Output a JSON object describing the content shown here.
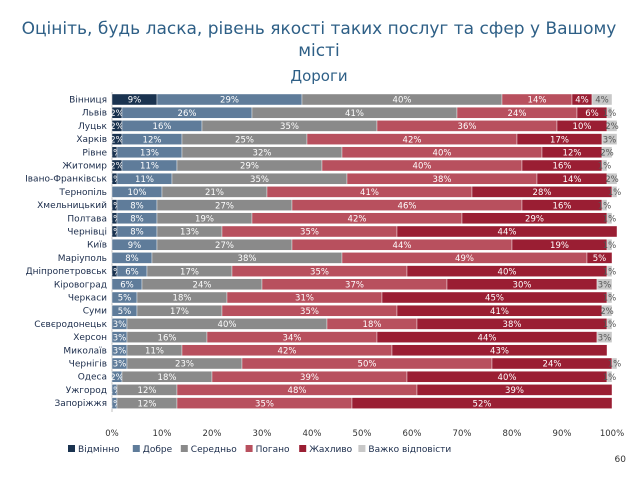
{
  "header": {
    "title": "Оцініть, будь ласка, рівень якості таких послуг та сфер у Вашому місті",
    "page_number": "60"
  },
  "chart_data": {
    "type": "bar",
    "orientation": "horizontal",
    "stacked": true,
    "title": "Дороги",
    "xlim": [
      0,
      100
    ],
    "x_ticks": [
      "0%",
      "10%",
      "20%",
      "30%",
      "40%",
      "50%",
      "60%",
      "70%",
      "80%",
      "90%",
      "100%"
    ],
    "legend_position": "bottom",
    "categories": [
      "Вінниця",
      "Львів",
      "Луцьк",
      "Харків",
      "Рівне",
      "Житомир",
      "Івано-Франківськ",
      "Тернопіль",
      "Хмельницький",
      "Полтава",
      "Чернівці",
      "Київ",
      "Маріуполь",
      "Дніпропетровськ",
      "Кіровоград",
      "Черкаси",
      "Суми",
      "Сєвєродонецьк",
      "Херсон",
      "Миколаїв",
      "Чернігів",
      "Одеса",
      "Ужгород",
      "Запоріжжя"
    ],
    "series": [
      {
        "name": "Відмінно",
        "color": "#1a3350",
        "text_color": "#ffffff",
        "values": [
          9,
          2,
          2,
          2,
          1,
          2,
          1,
          0,
          1,
          1,
          1,
          0,
          0,
          1,
          0,
          0,
          0,
          0,
          0,
          0,
          0,
          0,
          0,
          0
        ],
        "labels": [
          "9%",
          "2%",
          "2%",
          "2%",
          "1%",
          "2%",
          "1%",
          "",
          "1%",
          "1%",
          "1%",
          "",
          "",
          "1%",
          "",
          "",
          "",
          "",
          "",
          "",
          "",
          "",
          "",
          ""
        ]
      },
      {
        "name": "Добре",
        "color": "#5f7c9a",
        "text_color": "#ffffff",
        "values": [
          29,
          26,
          16,
          12,
          13,
          11,
          11,
          10,
          8,
          8,
          8,
          9,
          8,
          6,
          6,
          5,
          5,
          3,
          3,
          3,
          3,
          2,
          1,
          1
        ],
        "labels": [
          "29%",
          "26%",
          "16%",
          "12%",
          "13%",
          "11%",
          "11%",
          "10%",
          "8%",
          "8%",
          "8%",
          "9%",
          "8%",
          "6%",
          "6%",
          "5%",
          "5%",
          "3%",
          "3%",
          "3%",
          "3%",
          "2%",
          "1%",
          "1%"
        ]
      },
      {
        "name": "Середньо",
        "color": "#8a8a8a",
        "text_color": "#ffffff",
        "values": [
          40,
          41,
          35,
          25,
          32,
          29,
          35,
          21,
          27,
          19,
          13,
          27,
          38,
          17,
          24,
          18,
          17,
          40,
          16,
          11,
          23,
          18,
          12,
          12
        ],
        "labels": [
          "40%",
          "41%",
          "35%",
          "25%",
          "32%",
          "29%",
          "35%",
          "21%",
          "27%",
          "19%",
          "13%",
          "27%",
          "38%",
          "17%",
          "24%",
          "18%",
          "17%",
          "40%",
          "16%",
          "11%",
          "23%",
          "18%",
          "12%",
          "12%"
        ]
      },
      {
        "name": "Погано",
        "color": "#b8505e",
        "text_color": "#ffffff",
        "values": [
          14,
          24,
          36,
          42,
          40,
          40,
          38,
          41,
          46,
          42,
          35,
          44,
          49,
          35,
          37,
          31,
          35,
          18,
          34,
          42,
          50,
          39,
          48,
          35
        ],
        "labels": [
          "14%",
          "24%",
          "36%",
          "42%",
          "40%",
          "40%",
          "38%",
          "41%",
          "46%",
          "42%",
          "35%",
          "44%",
          "49%",
          "35%",
          "37%",
          "31%",
          "35%",
          "18%",
          "34%",
          "42%",
          "50%",
          "39%",
          "48%",
          "35%"
        ]
      },
      {
        "name": "Жахливо",
        "color": "#9a1e33",
        "text_color": "#ffffff",
        "values": [
          4,
          6,
          10,
          17,
          12,
          16,
          14,
          28,
          16,
          29,
          44,
          19,
          5,
          40,
          30,
          45,
          41,
          38,
          44,
          43,
          24,
          40,
          39,
          52
        ],
        "labels": [
          "4%",
          "6%",
          "10%",
          "17%",
          "12%",
          "16%",
          "14%",
          "28%",
          "16%",
          "29%",
          "44%",
          "19%",
          "5%",
          "40%",
          "30%",
          "45%",
          "41%",
          "38%",
          "44%",
          "43%",
          "24%",
          "40%",
          "39%",
          "52%"
        ]
      },
      {
        "name": "Важко відповісти",
        "color": "#c8c8c8",
        "text_color": "#555555",
        "values": [
          4,
          1,
          2,
          3,
          2,
          1,
          2,
          1,
          1,
          1,
          0,
          1,
          0,
          1,
          3,
          1,
          2,
          1,
          3,
          0,
          1,
          1,
          0,
          0
        ],
        "labels": [
          "4%",
          "1%",
          "2%",
          "3%",
          "2%",
          "1%",
          "2%",
          "1%",
          "1%",
          "1%",
          "",
          "1%",
          "",
          "1%",
          "3%",
          "1%",
          "2%",
          "1%",
          "3%",
          "",
          "1%",
          "1%",
          "",
          ""
        ]
      }
    ]
  }
}
